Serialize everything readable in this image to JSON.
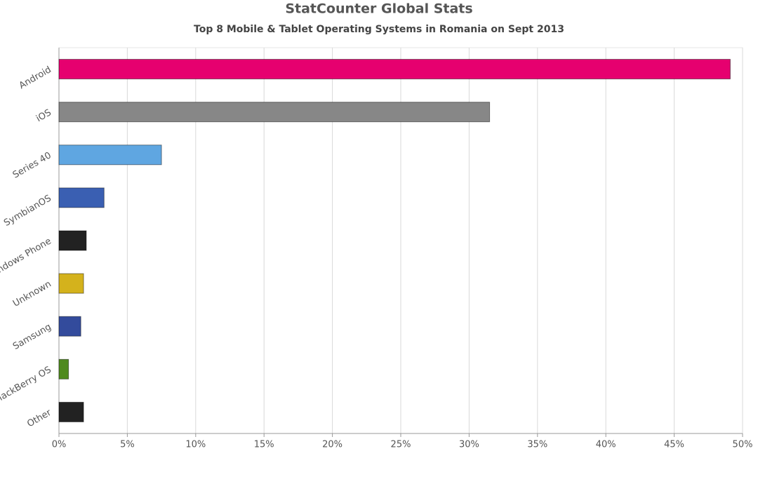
{
  "chart_data": {
    "type": "bar",
    "orientation": "horizontal",
    "title": "StatCounter Global Stats",
    "subtitle": "Top 8 Mobile & Tablet Operating Systems in Romania on Sept 2013",
    "categories": [
      "Android",
      "iOS",
      "Series 40",
      "SymbianOS",
      "Windows Phone",
      "Unknown",
      "Samsung",
      "BlackBerry OS",
      "Other"
    ],
    "values": [
      49.1,
      31.5,
      7.5,
      3.3,
      2.0,
      1.8,
      1.6,
      0.7,
      1.8
    ],
    "colors": [
      "#e6006f",
      "#878787",
      "#5fa6e1",
      "#3a5fb2",
      "#222222",
      "#d4b21c",
      "#334b9c",
      "#4f8a1e",
      "#222222"
    ],
    "xlim": [
      0,
      50
    ],
    "xticks": [
      {
        "value": 0,
        "label": "0%"
      },
      {
        "value": 5,
        "label": "5%"
      },
      {
        "value": 10,
        "label": "10%"
      },
      {
        "value": 15,
        "label": "15%"
      },
      {
        "value": 20,
        "label": "20%"
      },
      {
        "value": 25,
        "label": "25%"
      },
      {
        "value": 30,
        "label": "30%"
      },
      {
        "value": 35,
        "label": "35%"
      },
      {
        "value": 40,
        "label": "40%"
      },
      {
        "value": 45,
        "label": "45%"
      },
      {
        "value": 50,
        "label": "50%"
      }
    ],
    "grid": true
  }
}
